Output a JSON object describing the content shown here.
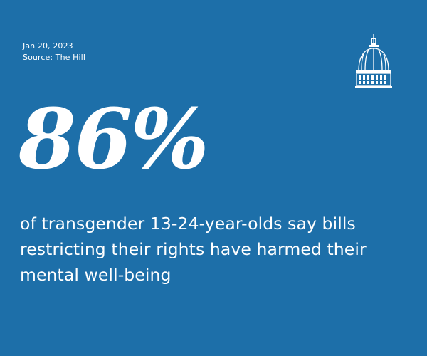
{
  "meta": {
    "date": "Jan 20, 2023",
    "source": "Source: The Hill"
  },
  "stat": {
    "value": "86%",
    "description": "of transgender 13-24-year-olds say bills restricting their rights have harmed their mental well-being"
  },
  "logo": {
    "icon": "capitol-dome-icon"
  },
  "colors": {
    "background": "#1d6fa9",
    "text": "#ffffff"
  }
}
